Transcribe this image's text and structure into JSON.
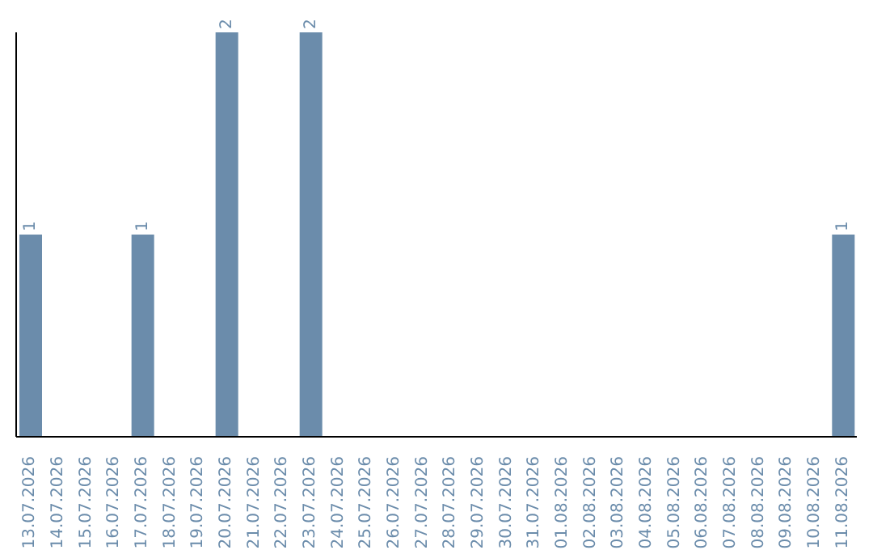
{
  "chart_data": {
    "type": "bar",
    "categories": [
      "13.07.2026",
      "14.07.2026",
      "15.07.2026",
      "16.07.2026",
      "17.07.2026",
      "18.07.2026",
      "19.07.2026",
      "20.07.2026",
      "21.07.2026",
      "22.07.2026",
      "23.07.2026",
      "24.07.2026",
      "25.07.2026",
      "26.07.2026",
      "27.07.2026",
      "28.07.2026",
      "29.07.2026",
      "30.07.2026",
      "31.07.2026",
      "01.08.2026",
      "02.08.2026",
      "03.08.2026",
      "04.08.2026",
      "05.08.2026",
      "06.08.2026",
      "07.08.2026",
      "08.08.2026",
      "09.08.2026",
      "10.08.2026",
      "11.08.2026"
    ],
    "values": [
      1,
      0,
      0,
      0,
      1,
      0,
      0,
      2,
      0,
      0,
      2,
      0,
      0,
      0,
      0,
      0,
      0,
      0,
      0,
      0,
      0,
      0,
      0,
      0,
      0,
      0,
      0,
      0,
      0,
      1
    ],
    "value_labels": [
      "1",
      null,
      null,
      null,
      "1",
      null,
      null,
      "2",
      null,
      null,
      "2",
      null,
      null,
      null,
      null,
      null,
      null,
      null,
      null,
      null,
      null,
      null,
      null,
      null,
      null,
      null,
      null,
      null,
      null,
      "1"
    ],
    "color": "#6b8cab",
    "ylim": [
      0,
      2
    ],
    "grid": false,
    "legend": false
  }
}
